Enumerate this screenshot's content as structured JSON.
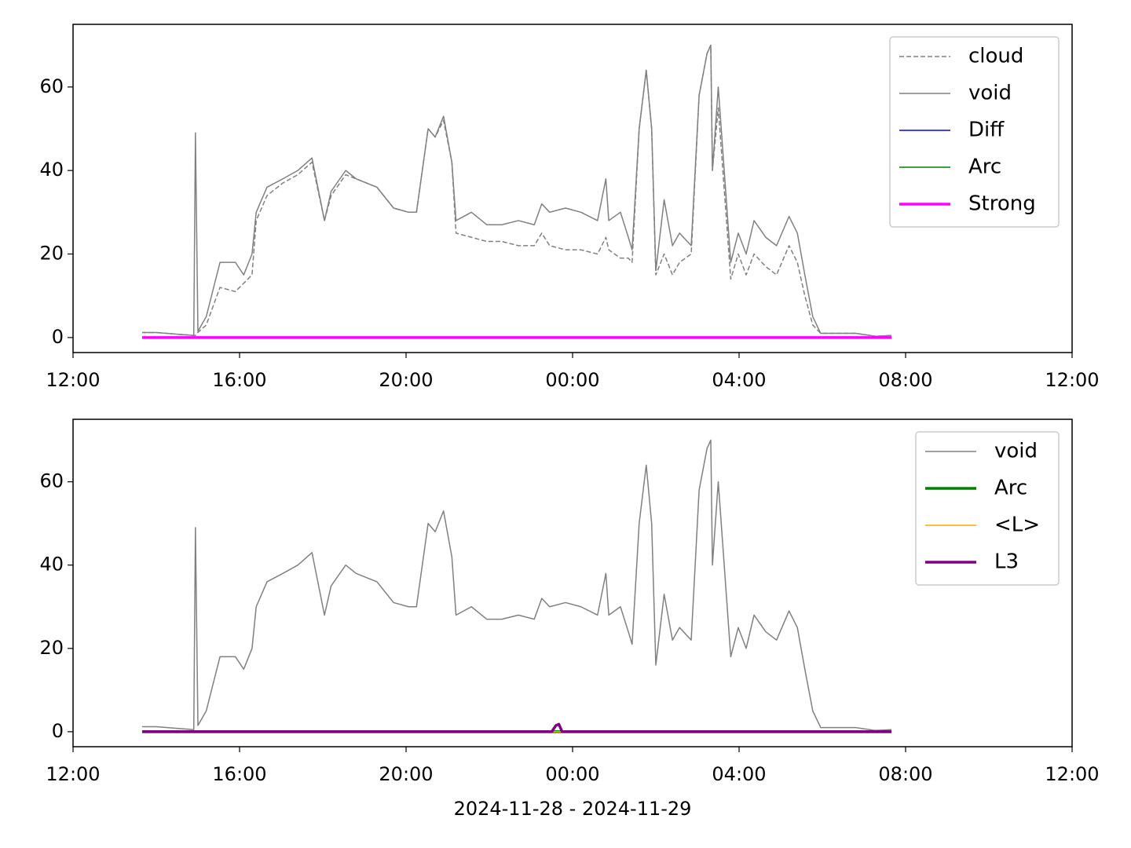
{
  "chart_data": [
    {
      "type": "line",
      "x": [
        1.66,
        2.0,
        2.5,
        2.9,
        2.94,
        3.0,
        3.2,
        3.53,
        3.9,
        4.1,
        4.3,
        4.4,
        4.66,
        5.04,
        5.4,
        5.74,
        6.04,
        6.2,
        6.55,
        6.8,
        7.3,
        7.7,
        8.06,
        8.25,
        8.53,
        8.7,
        8.9,
        9.1,
        9.2,
        9.57,
        9.94,
        10.3,
        10.7,
        11.08,
        11.26,
        11.45,
        11.83,
        12.2,
        12.6,
        12.8,
        12.87,
        13.15,
        13.34,
        13.43,
        13.6,
        13.77,
        13.9,
        14.0,
        14.2,
        14.4,
        14.57,
        14.85,
        15.04,
        15.23,
        15.32,
        15.36,
        15.5,
        15.8,
        15.98,
        16.17,
        16.36,
        16.64,
        16.9,
        17.2,
        17.4,
        17.58,
        17.77,
        17.96,
        18.25,
        18.8,
        19.28,
        19.66
      ],
      "series": [
        {
          "name": "cloud",
          "color": "#808080",
          "linestyle": "dashed",
          "linewidth": 1.5,
          "values": [
            1.2,
            1.2,
            0.8,
            0.5,
            0.5,
            1.2,
            3,
            12,
            11,
            13,
            15,
            28,
            34,
            37,
            39,
            42,
            28,
            34,
            39,
            38,
            36,
            31,
            30,
            30,
            50,
            48,
            52,
            42,
            25,
            24,
            23,
            23,
            22,
            22,
            25,
            22,
            21,
            21,
            20,
            24,
            21,
            19,
            19,
            18,
            50,
            64,
            50,
            15,
            20,
            15,
            18,
            20,
            58,
            68,
            70,
            40,
            55,
            14,
            20,
            15,
            20,
            17,
            15,
            22,
            18,
            10,
            3,
            1,
            1,
            1,
            0.3,
            0.5
          ]
        },
        {
          "name": "void",
          "color": "#808080",
          "linestyle": "solid",
          "linewidth": 1.5,
          "values": [
            1.2,
            1.2,
            0.8,
            0.5,
            49,
            1.5,
            5,
            18,
            18,
            15,
            20,
            30,
            36,
            38,
            40,
            43,
            28,
            35,
            40,
            38,
            36,
            31,
            30,
            30,
            50,
            48,
            53,
            42,
            28,
            30,
            27,
            27,
            28,
            27,
            32,
            30,
            31,
            30,
            28,
            38,
            28,
            30,
            24,
            21,
            50,
            64,
            50,
            16,
            33,
            22,
            25,
            22,
            58,
            68,
            70,
            40,
            60,
            18,
            25,
            20,
            28,
            24,
            22,
            29,
            25,
            15,
            5,
            1,
            1,
            1,
            0.3,
            0.5
          ]
        },
        {
          "name": "Diff",
          "color": "#0000ff",
          "linestyle": "solid",
          "linewidth": 1.5,
          "x": [
            1.66,
            19.66
          ],
          "values": [
            0,
            0
          ]
        },
        {
          "name": "Arc",
          "color": "#008000",
          "linestyle": "solid",
          "linewidth": 1.5,
          "x": [
            1.66,
            19.66
          ],
          "values": [
            0,
            0
          ]
        },
        {
          "name": "Strong",
          "color": "#ff00ff",
          "linestyle": "solid",
          "linewidth": 3.5,
          "x": [
            1.66,
            19.66
          ],
          "values": [
            0,
            0
          ]
        }
      ],
      "xlim": [
        0,
        24
      ],
      "xticks": [
        {
          "value": 0,
          "label": "12:00"
        },
        {
          "value": 4,
          "label": "16:00"
        },
        {
          "value": 8,
          "label": "20:00"
        },
        {
          "value": 12,
          "label": "00:00"
        },
        {
          "value": 16,
          "label": "04:00"
        },
        {
          "value": 20,
          "label": "08:00"
        },
        {
          "value": 24,
          "label": "12:00"
        }
      ],
      "ylim": [
        -3.6,
        75
      ],
      "yticks": [
        0,
        20,
        40,
        60
      ],
      "legend": "upper right"
    },
    {
      "type": "line",
      "xlabel": "2024-11-28 - 2024-11-29",
      "x": [
        1.66,
        2.0,
        2.5,
        2.9,
        2.94,
        3.0,
        3.2,
        3.53,
        3.9,
        4.1,
        4.3,
        4.4,
        4.66,
        5.04,
        5.4,
        5.74,
        6.04,
        6.2,
        6.55,
        6.8,
        7.3,
        7.7,
        8.06,
        8.25,
        8.53,
        8.7,
        8.9,
        9.1,
        9.2,
        9.57,
        9.94,
        10.3,
        10.7,
        11.08,
        11.26,
        11.45,
        11.83,
        12.2,
        12.6,
        12.8,
        12.87,
        13.15,
        13.34,
        13.43,
        13.6,
        13.77,
        13.9,
        14.0,
        14.2,
        14.4,
        14.57,
        14.85,
        15.04,
        15.23,
        15.32,
        15.36,
        15.5,
        15.8,
        15.98,
        16.17,
        16.36,
        16.64,
        16.9,
        17.2,
        17.4,
        17.58,
        17.77,
        17.96,
        18.25,
        18.8,
        19.28,
        19.66
      ],
      "series": [
        {
          "name": "void",
          "color": "#808080",
          "linestyle": "solid",
          "linewidth": 1.5,
          "values": [
            1.2,
            1.2,
            0.8,
            0.5,
            49,
            1.5,
            5,
            18,
            18,
            15,
            20,
            30,
            36,
            38,
            40,
            43,
            28,
            35,
            40,
            38,
            36,
            31,
            30,
            30,
            50,
            48,
            53,
            42,
            28,
            30,
            27,
            27,
            28,
            27,
            32,
            30,
            31,
            30,
            28,
            38,
            28,
            30,
            24,
            21,
            50,
            64,
            50,
            16,
            33,
            22,
            25,
            22,
            58,
            68,
            70,
            40,
            60,
            18,
            25,
            20,
            28,
            24,
            22,
            29,
            25,
            15,
            5,
            1,
            1,
            1,
            0.3,
            0.5
          ]
        },
        {
          "name": "Arc",
          "color": "#008000",
          "linestyle": "solid",
          "linewidth": 3.5,
          "x": [
            1.66,
            19.66
          ],
          "values": [
            0,
            0
          ]
        },
        {
          "name": "<L>",
          "color": "#ffa500",
          "linestyle": "solid",
          "linewidth": 1.5,
          "x": [
            1.66,
            19.66
          ],
          "values": [
            0,
            0
          ]
        },
        {
          "name": "L3",
          "color": "#800080",
          "linestyle": "solid",
          "linewidth": 3.5,
          "x": [
            1.66,
            11.5,
            11.6,
            11.67,
            11.75,
            19.66
          ],
          "values": [
            0,
            0,
            1.5,
            1.8,
            0,
            0
          ]
        }
      ],
      "xlim": [
        0,
        24
      ],
      "xticks": [
        {
          "value": 0,
          "label": "12:00"
        },
        {
          "value": 4,
          "label": "16:00"
        },
        {
          "value": 8,
          "label": "20:00"
        },
        {
          "value": 12,
          "label": "00:00"
        },
        {
          "value": 16,
          "label": "04:00"
        },
        {
          "value": 20,
          "label": "08:00"
        },
        {
          "value": 24,
          "label": "12:00"
        }
      ],
      "ylim": [
        -3.6,
        75
      ],
      "yticks": [
        0,
        20,
        40,
        60
      ],
      "legend": "upper right"
    }
  ]
}
